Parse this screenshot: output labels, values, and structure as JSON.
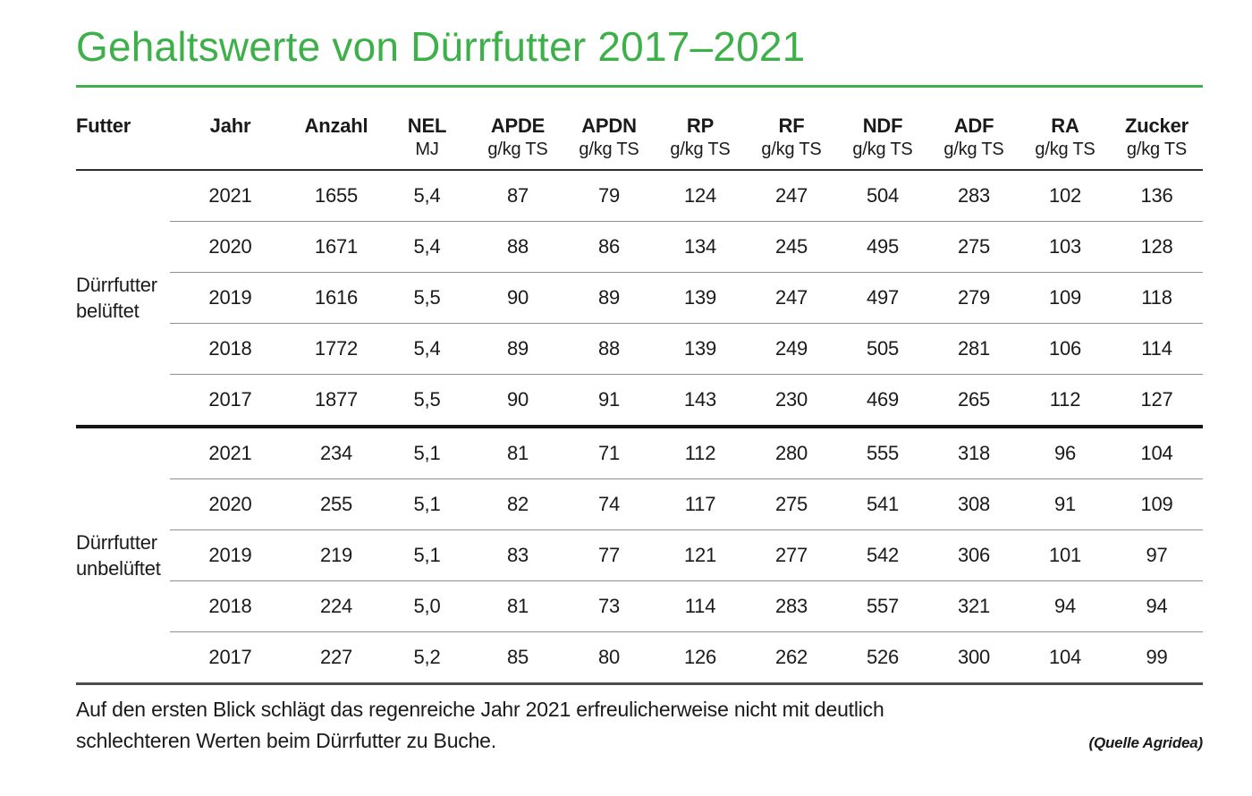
{
  "title": "Gehaltswerte von Dürrfutter 2017–2021",
  "colors": {
    "accent_green": "#3eb04a",
    "text": "#1a1a1a",
    "row_separator": "#8f8f8f",
    "group_divider": "#161616"
  },
  "caption": {
    "line1": "Auf den ersten Blick schlägt das regenreiche Jahr 2021 erfreulicherweise nicht mit deutlich",
    "line2": "schlechteren Werten beim Dürrfutter zu Buche.",
    "source": "(Quelle Agridea)"
  },
  "chart_data": {
    "type": "table",
    "title": "Gehaltswerte von Dürrfutter 2017–2021",
    "columns": [
      {
        "label": "Futter",
        "unit": ""
      },
      {
        "label": "Jahr",
        "unit": ""
      },
      {
        "label": "Anzahl",
        "unit": ""
      },
      {
        "label": "NEL",
        "unit": "MJ"
      },
      {
        "label": "APDE",
        "unit": "g/kg TS"
      },
      {
        "label": "APDN",
        "unit": "g/kg TS"
      },
      {
        "label": "RP",
        "unit": "g/kg TS"
      },
      {
        "label": "RF",
        "unit": "g/kg TS"
      },
      {
        "label": "NDF",
        "unit": "g/kg TS"
      },
      {
        "label": "ADF",
        "unit": "g/kg TS"
      },
      {
        "label": "RA",
        "unit": "g/kg TS"
      },
      {
        "label": "Zucker",
        "unit": "g/kg TS"
      }
    ],
    "groups": [
      {
        "label": "Dürrfutter belüftet",
        "rows": [
          [
            "2021",
            "1655",
            "5,4",
            "87",
            "79",
            "124",
            "247",
            "504",
            "283",
            "102",
            "136"
          ],
          [
            "2020",
            "1671",
            "5,4",
            "88",
            "86",
            "134",
            "245",
            "495",
            "275",
            "103",
            "128"
          ],
          [
            "2019",
            "1616",
            "5,5",
            "90",
            "89",
            "139",
            "247",
            "497",
            "279",
            "109",
            "118"
          ],
          [
            "2018",
            "1772",
            "5,4",
            "89",
            "88",
            "139",
            "249",
            "505",
            "281",
            "106",
            "114"
          ],
          [
            "2017",
            "1877",
            "5,5",
            "90",
            "91",
            "143",
            "230",
            "469",
            "265",
            "112",
            "127"
          ]
        ]
      },
      {
        "label": "Dürrfutter unbelüftet",
        "rows": [
          [
            "2021",
            "234",
            "5,1",
            "81",
            "71",
            "112",
            "280",
            "555",
            "318",
            "96",
            "104"
          ],
          [
            "2020",
            "255",
            "5,1",
            "82",
            "74",
            "117",
            "275",
            "541",
            "308",
            "91",
            "109"
          ],
          [
            "2019",
            "219",
            "5,1",
            "83",
            "77",
            "121",
            "277",
            "542",
            "306",
            "101",
            "97"
          ],
          [
            "2018",
            "224",
            "5,0",
            "81",
            "73",
            "114",
            "283",
            "557",
            "321",
            "94",
            "94"
          ],
          [
            "2017",
            "227",
            "5,2",
            "85",
            "80",
            "126",
            "262",
            "526",
            "300",
            "104",
            "99"
          ]
        ]
      }
    ]
  }
}
